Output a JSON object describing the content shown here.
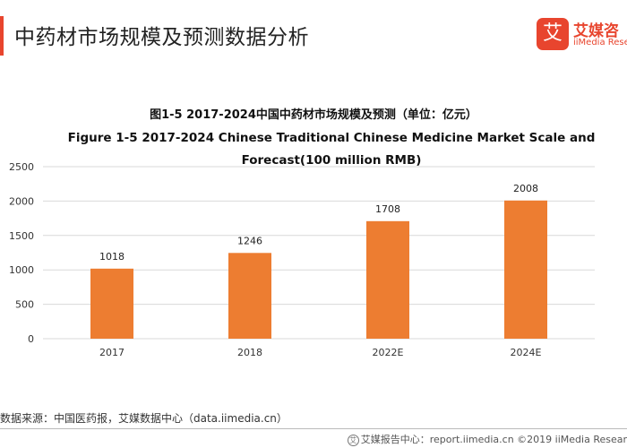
{
  "header": {
    "title": "中药材市场规模及预测数据分析"
  },
  "brand": {
    "icon_glyph": "艾",
    "name": "艾媒咨",
    "sub": "iiMedia Resea",
    "color": "#e8452e"
  },
  "chart_data": {
    "type": "bar",
    "title": "图1-5 2017-2024中国中药材市场规模及预测（单位：亿元）",
    "subtitle": "Figure 1-5 2017-2024 Chinese Traditional Chinese Medicine Market Scale and Forecast(100 million RMB)",
    "categories": [
      "2017",
      "2018",
      "2022E",
      "2024E"
    ],
    "values": [
      1018,
      1246,
      1708,
      2008
    ],
    "data_labels": [
      "1018",
      "1246",
      "1708",
      "2008"
    ],
    "ylim": [
      0,
      2500
    ],
    "yticks": [
      0,
      500,
      1000,
      1500,
      2000,
      2500
    ],
    "ytick_labels": [
      "0",
      "500",
      "1000",
      "1500",
      "2000",
      "2500"
    ],
    "xlabel": "",
    "ylabel": "",
    "grid": true,
    "legend": "none",
    "bar_color": "#ed7d31",
    "grid_color": "#d9d9d9"
  },
  "source": {
    "text": "数据来源：中国医药报，艾媒数据中心（data.iimedia.cn）"
  },
  "footer": {
    "icon_glyph": "艾",
    "text": "艾媒报告中心：report.iimedia.cn ©2019 iiMedia Resear"
  }
}
